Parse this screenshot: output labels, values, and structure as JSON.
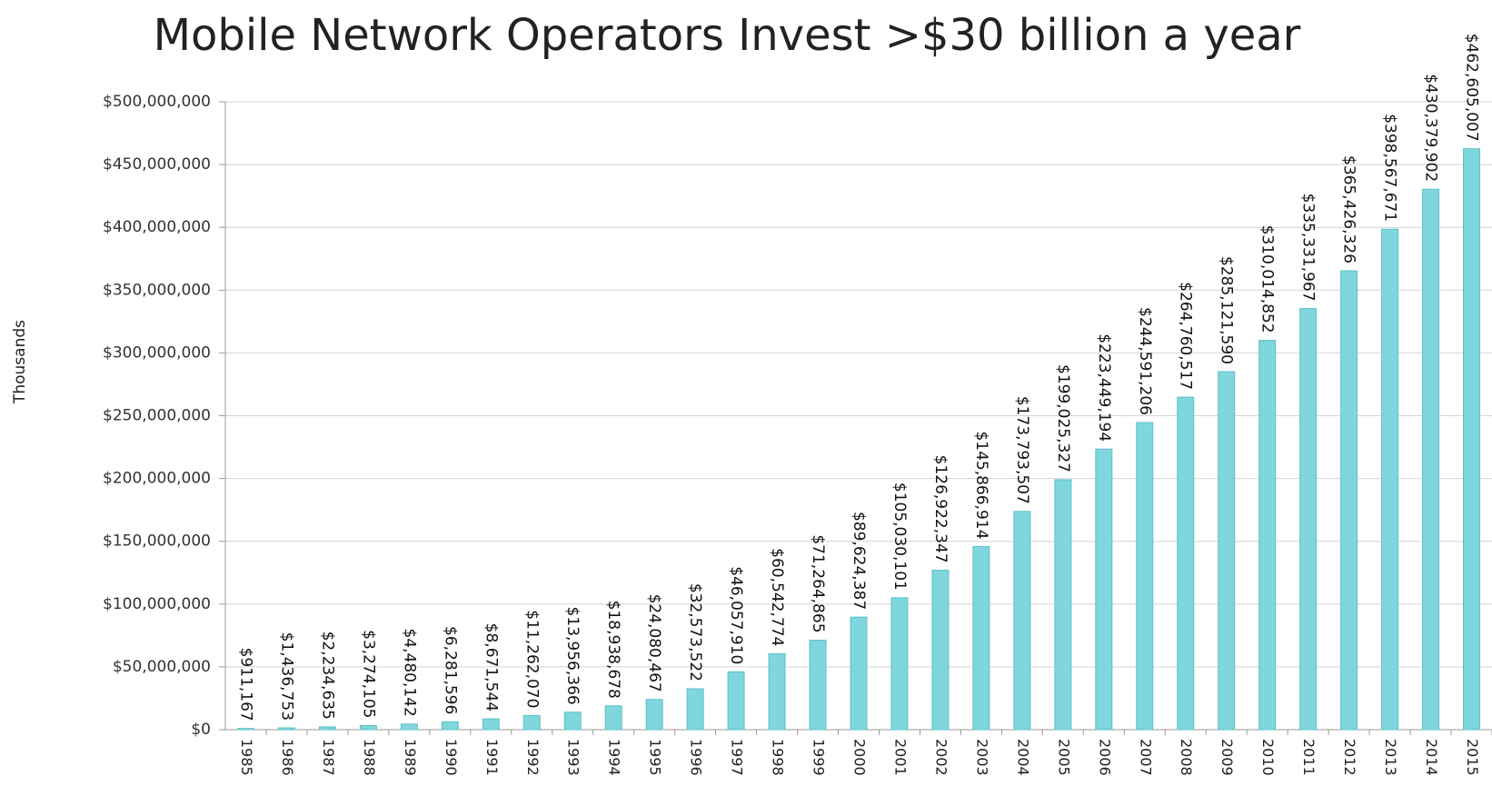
{
  "chart_data": {
    "type": "bar",
    "title": "Mobile Network Operators Invest >$30 billion a year",
    "y_label": "Thousands",
    "categories": [
      "1985",
      "1986",
      "1987",
      "1988",
      "1989",
      "1990",
      "1991",
      "1992",
      "1993",
      "1994",
      "1995",
      "1996",
      "1997",
      "1998",
      "1999",
      "2000",
      "2001",
      "2002",
      "2003",
      "2004",
      "2005",
      "2006",
      "2007",
      "2008",
      "2009",
      "2010",
      "2011",
      "2012",
      "2013",
      "2014",
      "2015"
    ],
    "values": [
      911167,
      1436753,
      2234635,
      3274105,
      4480142,
      6281596,
      8671544,
      11262070,
      13956366,
      18938678,
      24080467,
      32573522,
      46057910,
      60542774,
      71264865,
      89624387,
      105030101,
      126922347,
      145866914,
      173793507,
      199025327,
      223449194,
      244591206,
      264760517,
      285121590,
      310014852,
      335331967,
      365426326,
      398567671,
      430379902,
      462605007
    ],
    "value_labels": [
      "$911,167",
      "$1,436,753",
      "$2,234,635",
      "$3,274,105",
      "$4,480,142",
      "$6,281,596",
      "$8,671,544",
      "$11,262,070",
      "$13,956,366",
      "$18,938,678",
      "$24,080,467",
      "$32,573,522",
      "$46,057,910",
      "$60,542,774",
      "$71,264,865",
      "$89,624,387",
      "$105,030,101",
      "$126,922,347",
      "$145,866,914",
      "$173,793,507",
      "$199,025,327",
      "$223,449,194",
      "$244,591,206",
      "$264,760,517",
      "$285,121,590",
      "$310,014,852",
      "$335,331,967",
      "$365,426,326",
      "$398,567,671",
      "$430,379,902",
      "$462,605,007"
    ],
    "color": "#7fd6dc",
    "ylim": [
      0,
      500000000
    ],
    "yticks": [
      {
        "value": 0,
        "label": "$0"
      },
      {
        "value": 50000000,
        "label": "$50,000,000"
      },
      {
        "value": 100000000,
        "label": "$100,000,000"
      },
      {
        "value": 150000000,
        "label": "$150,000,000"
      },
      {
        "value": 200000000,
        "label": "$200,000,000"
      },
      {
        "value": 250000000,
        "label": "$250,000,000"
      },
      {
        "value": 300000000,
        "label": "$300,000,000"
      },
      {
        "value": 350000000,
        "label": "$350,000,000"
      },
      {
        "value": 400000000,
        "label": "$400,000,000"
      },
      {
        "value": 450000000,
        "label": "$450,000,000"
      },
      {
        "value": 500000000,
        "label": "$500,000,000"
      }
    ],
    "grid": true
  }
}
